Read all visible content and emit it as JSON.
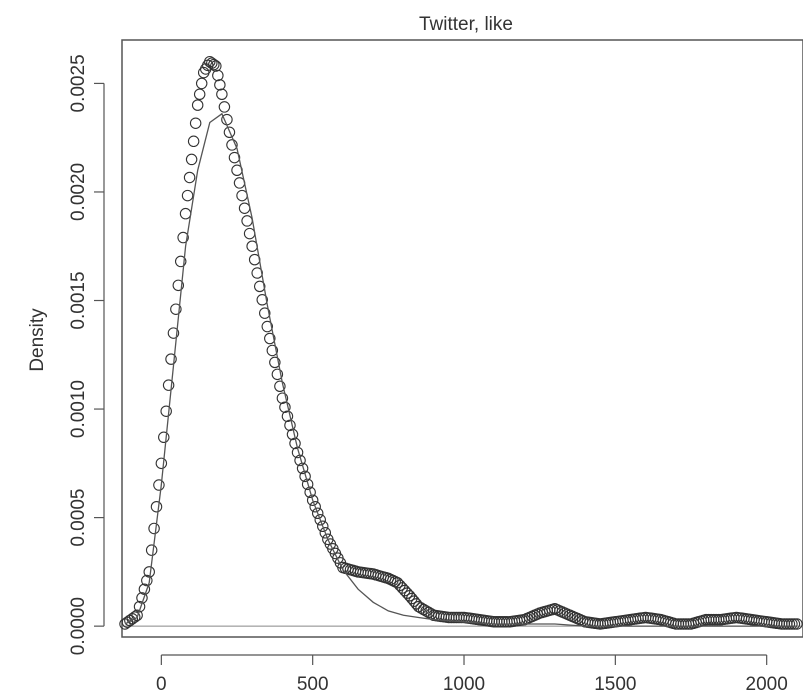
{
  "chart_data": {
    "type": "line",
    "title": "Twitter, like",
    "xlabel": "",
    "ylabel": "Density",
    "xlim": [
      -130,
      2120
    ],
    "ylim": [
      -5e-05,
      0.0027
    ],
    "x_ticks": [
      0,
      500,
      1000,
      1500,
      2000
    ],
    "x_tick_labels": [
      "0",
      "500",
      "1000",
      "1500",
      "2000"
    ],
    "y_ticks": [
      0,
      0.0005,
      0.001,
      0.0015,
      0.002,
      0.0025
    ],
    "y_tick_labels": [
      "0.0000",
      "0.0005",
      "0.0010",
      "0.0015",
      "0.0020",
      "0.0025"
    ],
    "reference_line_y": 0,
    "grid": false,
    "legend": "none",
    "series": [
      {
        "style": "circles",
        "x": [
          -120,
          -80,
          -40,
          0,
          40,
          80,
          100,
          120,
          140,
          160,
          180,
          200,
          250,
          300,
          350,
          400,
          450,
          500,
          550,
          600,
          650,
          700,
          750,
          780,
          820,
          850,
          900,
          950,
          1000,
          1050,
          1100,
          1150,
          1200,
          1250,
          1300,
          1350,
          1400,
          1450,
          1500,
          1550,
          1600,
          1650,
          1700,
          1750,
          1800,
          1850,
          1900,
          1950,
          2000,
          2050,
          2100
        ],
        "y": [
          1e-05,
          5e-05,
          0.00025,
          0.00075,
          0.00135,
          0.0019,
          0.00215,
          0.0024,
          0.00255,
          0.0026,
          0.00258,
          0.00245,
          0.0021,
          0.00175,
          0.00138,
          0.00105,
          0.0008,
          0.00058,
          0.0004,
          0.00027,
          0.00025,
          0.00024,
          0.00022,
          0.0002,
          0.00014,
          9e-05,
          5e-05,
          4e-05,
          4e-05,
          3e-05,
          2e-05,
          2e-05,
          3e-05,
          6e-05,
          8e-05,
          5e-05,
          2e-05,
          1e-05,
          2e-05,
          3e-05,
          4e-05,
          3e-05,
          1e-05,
          1e-05,
          3e-05,
          3e-05,
          4e-05,
          3e-05,
          2e-05,
          1e-05,
          1e-05
        ]
      },
      {
        "style": "line",
        "x": [
          -120,
          -80,
          -40,
          0,
          40,
          80,
          120,
          160,
          200,
          250,
          300,
          350,
          400,
          450,
          500,
          550,
          600,
          650,
          700,
          750,
          800,
          850,
          900,
          1000,
          1100,
          1200,
          1300,
          1400,
          1500,
          1600,
          1700,
          1800,
          1900,
          2000,
          2100
        ],
        "y": [
          1e-05,
          4e-05,
          0.0002,
          0.00065,
          0.0012,
          0.00175,
          0.0021,
          0.00232,
          0.00236,
          0.0022,
          0.00188,
          0.00148,
          0.00112,
          0.00082,
          0.00058,
          0.0004,
          0.00026,
          0.00017,
          0.00011,
          7e-05,
          5e-05,
          4e-05,
          3e-05,
          2e-05,
          1e-05,
          1e-05,
          1e-05,
          0.0,
          0.0,
          0.0,
          0.0,
          0.0,
          0.0,
          0.0,
          0.0
        ]
      }
    ]
  }
}
